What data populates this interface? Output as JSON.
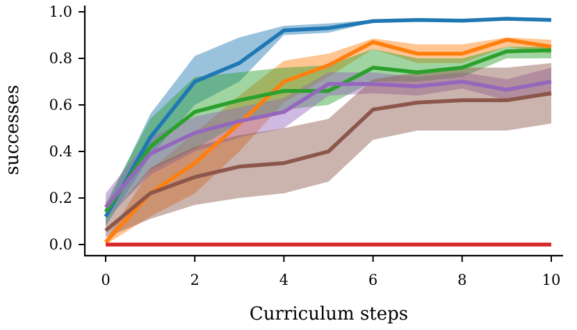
{
  "chart_data": {
    "type": "line",
    "title": "",
    "xlabel": "Curriculum steps",
    "ylabel": "successes",
    "xlim": [
      0,
      10
    ],
    "ylim": [
      0,
      1
    ],
    "grid": false,
    "legend": "none",
    "x": [
      0,
      1,
      2,
      3,
      4,
      5,
      6,
      7,
      8,
      9,
      10
    ],
    "x_ticks": [
      0,
      2,
      4,
      6,
      8,
      10
    ],
    "y_ticks": [
      0.0,
      0.2,
      0.4,
      0.6,
      0.8,
      1.0
    ],
    "x_tick_labels": [
      "0",
      "2",
      "4",
      "6",
      "8",
      "10"
    ],
    "y_tick_labels": [
      "0.0",
      "0.2",
      "0.4",
      "0.6",
      "0.8",
      "1.0"
    ],
    "series": [
      {
        "color": "#1f77b4",
        "values": [
          0.12,
          0.46,
          0.7,
          0.78,
          0.92,
          0.93,
          0.96,
          0.965,
          0.962,
          0.97,
          0.965
        ],
        "lower": [
          0.08,
          0.38,
          0.6,
          0.7,
          0.9,
          0.91,
          0.955,
          0.96,
          0.958,
          0.965,
          0.96
        ],
        "upper": [
          0.16,
          0.56,
          0.81,
          0.89,
          0.94,
          0.95,
          0.965,
          0.97,
          0.966,
          0.975,
          0.97
        ]
      },
      {
        "color": "#ff7f0e",
        "values": [
          0.01,
          0.22,
          0.35,
          0.52,
          0.7,
          0.77,
          0.87,
          0.82,
          0.82,
          0.88,
          0.85
        ],
        "lower": [
          0.0,
          0.12,
          0.22,
          0.4,
          0.61,
          0.72,
          0.84,
          0.78,
          0.78,
          0.85,
          0.82
        ],
        "upper": [
          0.02,
          0.32,
          0.48,
          0.64,
          0.79,
          0.82,
          0.885,
          0.86,
          0.86,
          0.89,
          0.88
        ]
      },
      {
        "color": "#2ca02c",
        "values": [
          0.14,
          0.42,
          0.57,
          0.62,
          0.66,
          0.66,
          0.76,
          0.74,
          0.76,
          0.83,
          0.835
        ],
        "lower": [
          0.1,
          0.32,
          0.41,
          0.52,
          0.58,
          0.6,
          0.7,
          0.7,
          0.72,
          0.8,
          0.8
        ],
        "upper": [
          0.18,
          0.54,
          0.72,
          0.74,
          0.76,
          0.77,
          0.84,
          0.8,
          0.8,
          0.85,
          0.85
        ]
      },
      {
        "color": "#9467bd",
        "values": [
          0.16,
          0.39,
          0.48,
          0.53,
          0.57,
          0.69,
          0.69,
          0.68,
          0.7,
          0.665,
          0.7
        ],
        "lower": [
          0.11,
          0.3,
          0.4,
          0.46,
          0.5,
          0.64,
          0.65,
          0.64,
          0.67,
          0.62,
          0.64
        ],
        "upper": [
          0.22,
          0.46,
          0.55,
          0.59,
          0.63,
          0.74,
          0.74,
          0.72,
          0.74,
          0.71,
          0.76
        ]
      },
      {
        "color": "#8c564b",
        "values": [
          0.06,
          0.22,
          0.29,
          0.335,
          0.35,
          0.4,
          0.58,
          0.61,
          0.62,
          0.62,
          0.65
        ],
        "lower": [
          0.03,
          0.11,
          0.17,
          0.2,
          0.22,
          0.27,
          0.45,
          0.49,
          0.49,
          0.49,
          0.52
        ],
        "upper": [
          0.1,
          0.33,
          0.42,
          0.47,
          0.5,
          0.54,
          0.71,
          0.74,
          0.76,
          0.76,
          0.78
        ]
      },
      {
        "color": "#d62728",
        "values": [
          0,
          0,
          0,
          0,
          0,
          0,
          0,
          0,
          0,
          0,
          0
        ],
        "lower": [
          0,
          0,
          0,
          0,
          0,
          0,
          0,
          0,
          0,
          0,
          0
        ],
        "upper": [
          0,
          0,
          0,
          0,
          0,
          0,
          0,
          0,
          0,
          0,
          0
        ]
      }
    ]
  }
}
